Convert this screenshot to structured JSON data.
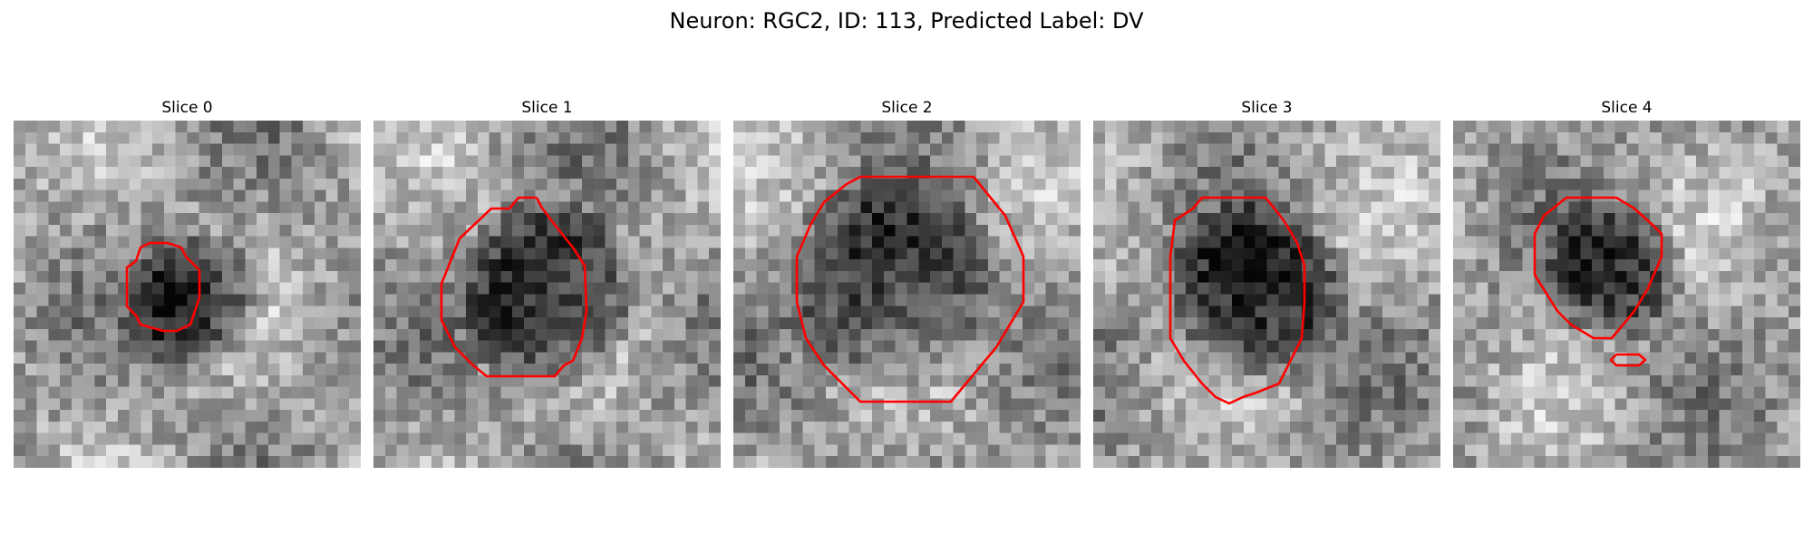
{
  "figure": {
    "title": "Neuron: RGC2, ID: 113, Predicted Label: DV"
  },
  "colors": {
    "contour": "#ff0000",
    "background": "#ffffff"
  },
  "panels": [
    {
      "title": "Slice 0"
    },
    {
      "title": "Slice 1"
    },
    {
      "title": "Slice 2"
    },
    {
      "title": "Slice 3"
    },
    {
      "title": "Slice 4"
    }
  ]
}
